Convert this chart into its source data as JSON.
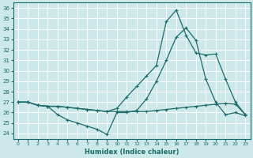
{
  "xlabel": "Humidex (Indice chaleur)",
  "bg_color": "#cce8e8",
  "grid_color": "#ffffff",
  "line_color": "#1a6b6b",
  "xlim": [
    -0.5,
    23.5
  ],
  "ylim": [
    23.5,
    36.5
  ],
  "xticks": [
    0,
    1,
    2,
    3,
    4,
    5,
    6,
    7,
    8,
    9,
    10,
    11,
    12,
    13,
    14,
    15,
    16,
    17,
    18,
    19,
    20,
    21,
    22,
    23
  ],
  "yticks": [
    24,
    25,
    26,
    27,
    28,
    29,
    30,
    31,
    32,
    33,
    34,
    35,
    36
  ],
  "line1_x": [
    0,
    1,
    2,
    3,
    4,
    5,
    6,
    7,
    8,
    9,
    10,
    11,
    12,
    13,
    14,
    15,
    16,
    17,
    18,
    19,
    20,
    21,
    22,
    23
  ],
  "line1_y": [
    27.0,
    27.0,
    26.7,
    26.6,
    25.8,
    25.3,
    25.0,
    24.7,
    24.4,
    23.9,
    26.0,
    26.0,
    26.2,
    27.3,
    29.0,
    31.0,
    33.2,
    34.1,
    32.9,
    29.2,
    27.0,
    25.8,
    26.0,
    25.7
  ],
  "line2_x": [
    0,
    1,
    2,
    3,
    4,
    5,
    6,
    7,
    8,
    9,
    10,
    11,
    12,
    13,
    14,
    15,
    16,
    17,
    18,
    19,
    20,
    21,
    22,
    23
  ],
  "line2_y": [
    27.0,
    27.0,
    26.7,
    26.6,
    26.6,
    26.5,
    26.4,
    26.3,
    26.2,
    26.1,
    26.1,
    26.1,
    26.1,
    26.1,
    26.2,
    26.3,
    26.4,
    26.5,
    26.6,
    26.7,
    26.8,
    26.9,
    26.8,
    25.8
  ],
  "line3_x": [
    0,
    1,
    2,
    3,
    4,
    5,
    6,
    7,
    8,
    9,
    10,
    11,
    12,
    13,
    14,
    15,
    16,
    17,
    18,
    19,
    20,
    21,
    22,
    23
  ],
  "line3_y": [
    27.0,
    27.0,
    26.7,
    26.6,
    26.6,
    26.5,
    26.4,
    26.3,
    26.2,
    26.1,
    26.4,
    27.5,
    28.5,
    29.5,
    30.5,
    34.7,
    35.8,
    33.4,
    31.7,
    31.5,
    31.6,
    29.2,
    27.0,
    25.8
  ]
}
